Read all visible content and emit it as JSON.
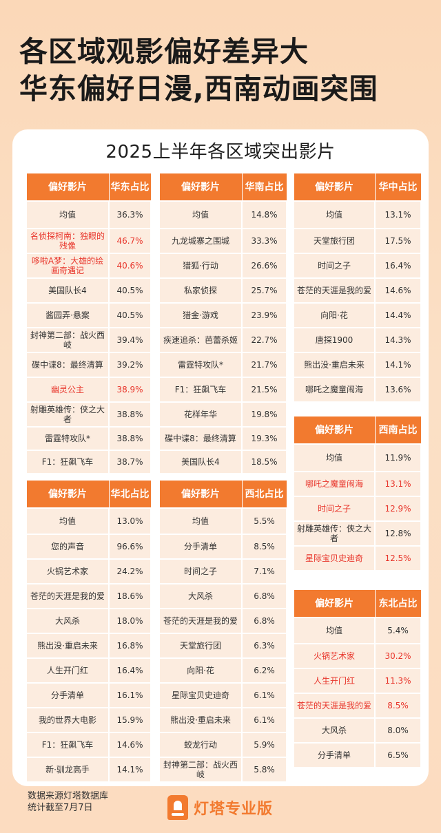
{
  "headline": {
    "line1": "各区域观影偏好差异大",
    "line2": "华东偏好日漫,西南动画突围"
  },
  "panel_title": "2025上半年各区域突出影片",
  "tables": {
    "east": {
      "col1": "偏好影片",
      "col2": "华东占比",
      "rows": [
        {
          "name": "均值",
          "value": "36.3%"
        },
        {
          "name": "名侦探柯南：独眼的残像",
          "value": "46.7%"
        },
        {
          "name": "哆啦A梦：大雄的绘画奇遇记",
          "value": "40.6%"
        },
        {
          "name": "美国队长4",
          "value": "40.5%"
        },
        {
          "name": "酱园弄·悬案",
          "value": "40.5%"
        },
        {
          "name": "封神第二部：战火西岐",
          "value": "39.4%"
        },
        {
          "name": "碟中谍8：最终清算",
          "value": "39.2%"
        },
        {
          "name": "幽灵公主",
          "value": "38.9%"
        },
        {
          "name": "射雕英雄传：侠之大者",
          "value": "38.8%"
        },
        {
          "name": "雷霆特攻队*",
          "value": "38.8%"
        },
        {
          "name": "F1：狂飙飞车",
          "value": "38.7%"
        }
      ]
    },
    "south": {
      "col1": "偏好影片",
      "col2": "华南占比",
      "rows": [
        {
          "name": "均值",
          "value": "14.8%"
        },
        {
          "name": "九龙城寨之围城",
          "value": "33.3%"
        },
        {
          "name": "猎狐·行动",
          "value": "26.6%"
        },
        {
          "name": "私家侦探",
          "value": "25.7%"
        },
        {
          "name": "猎金·游戏",
          "value": "23.9%"
        },
        {
          "name": "疾速追杀：芭蕾杀姬",
          "value": "22.7%"
        },
        {
          "name": "雷霆特攻队*",
          "value": "21.7%"
        },
        {
          "name": "F1：狂飙飞车",
          "value": "21.5%"
        },
        {
          "name": "花样年华",
          "value": "19.8%"
        },
        {
          "name": "碟中谍8：最终清算",
          "value": "19.3%"
        },
        {
          "name": "美国队长4",
          "value": "18.5%"
        }
      ]
    },
    "central": {
      "col1": "偏好影片",
      "col2": "华中占比",
      "rows": [
        {
          "name": "均值",
          "value": "13.1%"
        },
        {
          "name": "天堂旅行团",
          "value": "17.5%"
        },
        {
          "name": "时间之子",
          "value": "16.4%"
        },
        {
          "name": "苍茫的天涯是我的爱",
          "value": "14.6%"
        },
        {
          "name": "向阳·花",
          "value": "14.4%"
        },
        {
          "name": "唐探1900",
          "value": "14.3%"
        },
        {
          "name": "熊出没·重启未来",
          "value": "14.1%"
        },
        {
          "name": "哪吒之魔童闹海",
          "value": "13.6%"
        }
      ]
    },
    "southwest": {
      "col1": "偏好影片",
      "col2": "西南占比",
      "rows": [
        {
          "name": "均值",
          "value": "11.9%"
        },
        {
          "name": "哪吒之魔童闹海",
          "value": "13.1%"
        },
        {
          "name": "时间之子",
          "value": "12.9%"
        },
        {
          "name": "射雕英雄传：侠之大者",
          "value": "12.8%"
        },
        {
          "name": "星际宝贝史迪奇",
          "value": "12.5%"
        }
      ]
    },
    "north": {
      "col1": "偏好影片",
      "col2": "华北占比",
      "rows": [
        {
          "name": "均值",
          "value": "13.0%"
        },
        {
          "name": "您的声音",
          "value": "96.6%"
        },
        {
          "name": "火锅艺术家",
          "value": "24.2%"
        },
        {
          "name": "苍茫的天涯是我的爱",
          "value": "18.6%"
        },
        {
          "name": "大风杀",
          "value": "18.0%"
        },
        {
          "name": "熊出没·重启未来",
          "value": "16.8%"
        },
        {
          "name": "人生开门红",
          "value": "16.4%"
        },
        {
          "name": "分手清单",
          "value": "16.1%"
        },
        {
          "name": "我的世界大电影",
          "value": "15.9%"
        },
        {
          "name": "F1：狂飙飞车",
          "value": "14.6%"
        },
        {
          "name": "新·驯龙高手",
          "value": "14.1%"
        }
      ]
    },
    "northwest": {
      "col1": "偏好影片",
      "col2": "西北占比",
      "rows": [
        {
          "name": "均值",
          "value": "5.5%"
        },
        {
          "name": "分手清单",
          "value": "8.5%"
        },
        {
          "name": "时间之子",
          "value": "7.1%"
        },
        {
          "name": "大风杀",
          "value": "6.8%"
        },
        {
          "name": "苍茫的天涯是我的爱",
          "value": "6.8%"
        },
        {
          "name": "天堂旅行团",
          "value": "6.3%"
        },
        {
          "name": "向阳·花",
          "value": "6.2%"
        },
        {
          "name": "星际宝贝史迪奇",
          "value": "6.1%"
        },
        {
          "name": "熊出没·重启未来",
          "value": "6.1%"
        },
        {
          "name": "蛟龙行动",
          "value": "5.9%"
        },
        {
          "name": "封神第二部：战火西岐",
          "value": "5.8%"
        }
      ]
    },
    "northeast": {
      "col1": "偏好影片",
      "col2": "东北占比",
      "rows": [
        {
          "name": "均值",
          "value": "5.4%"
        },
        {
          "name": "火锅艺术家",
          "value": "30.2%"
        },
        {
          "name": "人生开门红",
          "value": "11.3%"
        },
        {
          "name": "苍茫的天涯是我的爱",
          "value": "8.5%"
        },
        {
          "name": "大风杀",
          "value": "8.0%"
        },
        {
          "name": "分手清单",
          "value": "6.5%"
        }
      ]
    }
  },
  "footer": {
    "source": "数据来源灯塔数据库",
    "cutoff": "统计截至7月7日",
    "brand": "灯塔专业版"
  },
  "colors": {
    "header": "#f27a2f",
    "row_bg": "#fcecdf",
    "highlight_text": "#e8352b"
  }
}
